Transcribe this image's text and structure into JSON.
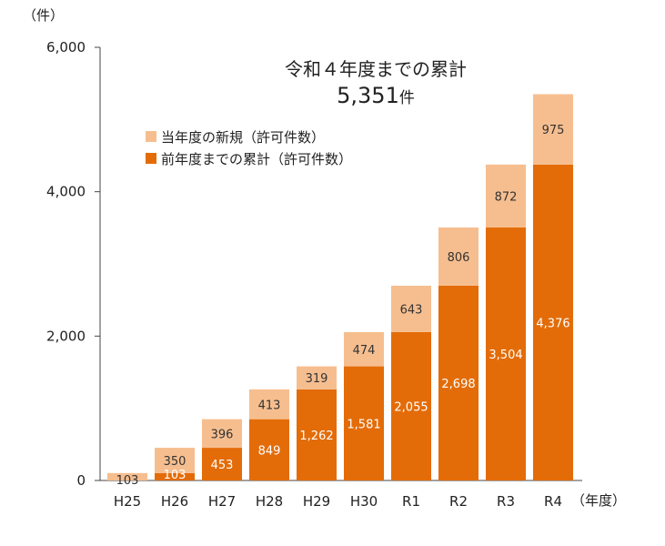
{
  "chart_data": {
    "type": "bar",
    "stacked": true,
    "categories": [
      "H25",
      "H26",
      "H27",
      "H28",
      "H29",
      "H30",
      "R1",
      "R2",
      "R3",
      "R4"
    ],
    "series": [
      {
        "name": "前年度までの累計（許可件数）",
        "color": "#E36C09",
        "values": [
          0,
          103,
          453,
          849,
          1262,
          1581,
          2055,
          2698,
          3504,
          4376
        ],
        "labels": [
          "",
          "103",
          "453",
          "849",
          "1,262",
          "1,581",
          "2,055",
          "2,698",
          "3,504",
          "4,376"
        ]
      },
      {
        "name": "当年度の新規（許可件数）",
        "color": "#F6BE8F",
        "values": [
          103,
          350,
          396,
          413,
          319,
          474,
          643,
          806,
          872,
          975
        ],
        "labels": [
          "103",
          "350",
          "396",
          "413",
          "319",
          "474",
          "643",
          "806",
          "872",
          "975"
        ]
      }
    ],
    "y_unit": "（件）",
    "x_unit": "（年度）",
    "ylim": [
      0,
      6000
    ],
    "yticks": [
      0,
      2000,
      4000,
      6000
    ],
    "ytick_labels": [
      "0",
      "2,000",
      "4,000",
      "6,000"
    ],
    "grid": false,
    "legend_position": "top-left",
    "annotation": {
      "line1": "令和４年度までの累計",
      "number": "5,351",
      "suffix": "件"
    }
  }
}
